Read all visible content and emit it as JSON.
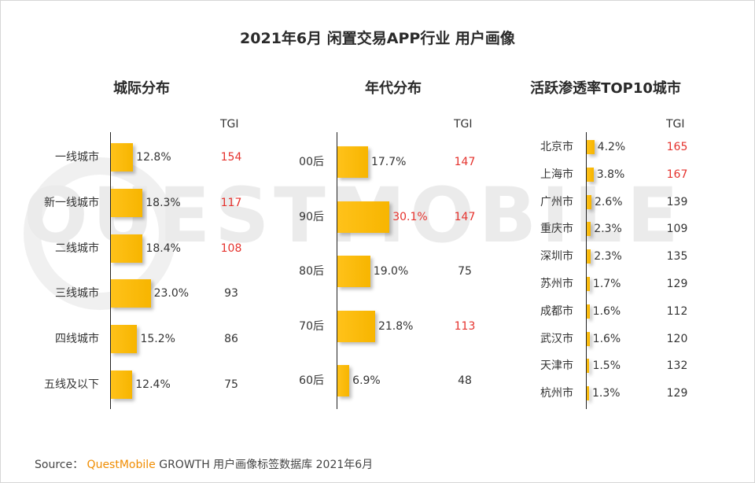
{
  "title": "2021年6月 闲置交易APP行业 用户画像",
  "watermark": "QUESTMOBILE",
  "footer": {
    "prefix": "Source：",
    "brand": "QuestMobile",
    "rest": "GROWTH 用户画像标签数据库 2021年6月"
  },
  "colors": {
    "bar": "#ffc21a",
    "highlight": "#e5322d",
    "text": "#333333"
  },
  "chart_data": [
    {
      "type": "bar",
      "orientation": "horizontal",
      "title": "城际分布",
      "tgi_header": "TGI",
      "categories": [
        "一线城市",
        "新一线城市",
        "二线城市",
        "三线城市",
        "四线城市",
        "五线及以下"
      ],
      "values": [
        12.8,
        18.3,
        18.4,
        23.0,
        15.2,
        12.4
      ],
      "value_labels": [
        "12.8%",
        "18.3%",
        "18.4%",
        "23.0%",
        "15.2%",
        "12.4%"
      ],
      "tgi": [
        154,
        117,
        108,
        93,
        86,
        75
      ],
      "tgi_highlight": [
        true,
        true,
        true,
        false,
        false,
        false
      ],
      "value_highlight": [
        false,
        false,
        false,
        false,
        false,
        false
      ]
    },
    {
      "type": "bar",
      "orientation": "horizontal",
      "title": "年代分布",
      "tgi_header": "TGI",
      "categories": [
        "00后",
        "90后",
        "80后",
        "70后",
        "60后"
      ],
      "values": [
        17.7,
        30.1,
        19.0,
        21.8,
        6.9
      ],
      "value_labels": [
        "17.7%",
        "30.1%",
        "19.0%",
        "21.8%",
        "6.9%"
      ],
      "tgi": [
        147,
        147,
        75,
        113,
        48
      ],
      "tgi_highlight": [
        true,
        true,
        false,
        true,
        false
      ],
      "value_highlight": [
        false,
        true,
        false,
        false,
        false
      ]
    },
    {
      "type": "bar",
      "orientation": "horizontal",
      "title": "活跃渗透率TOP10城市",
      "tgi_header": "TGI",
      "categories": [
        "北京市",
        "上海市",
        "广州市",
        "重庆市",
        "深圳市",
        "苏州市",
        "成都市",
        "武汉市",
        "天津市",
        "杭州市"
      ],
      "values": [
        4.2,
        3.8,
        2.6,
        2.3,
        2.3,
        1.7,
        1.6,
        1.6,
        1.5,
        1.3
      ],
      "value_labels": [
        "4.2%",
        "3.8%",
        "2.6%",
        "2.3%",
        "2.3%",
        "1.7%",
        "1.6%",
        "1.6%",
        "1.5%",
        "1.3%"
      ],
      "tgi": [
        165,
        167,
        139,
        109,
        135,
        129,
        112,
        120,
        132,
        129
      ],
      "tgi_highlight": [
        true,
        true,
        false,
        false,
        false,
        false,
        false,
        false,
        false,
        false
      ],
      "value_highlight": [
        false,
        false,
        false,
        false,
        false,
        false,
        false,
        false,
        false,
        false
      ]
    }
  ]
}
